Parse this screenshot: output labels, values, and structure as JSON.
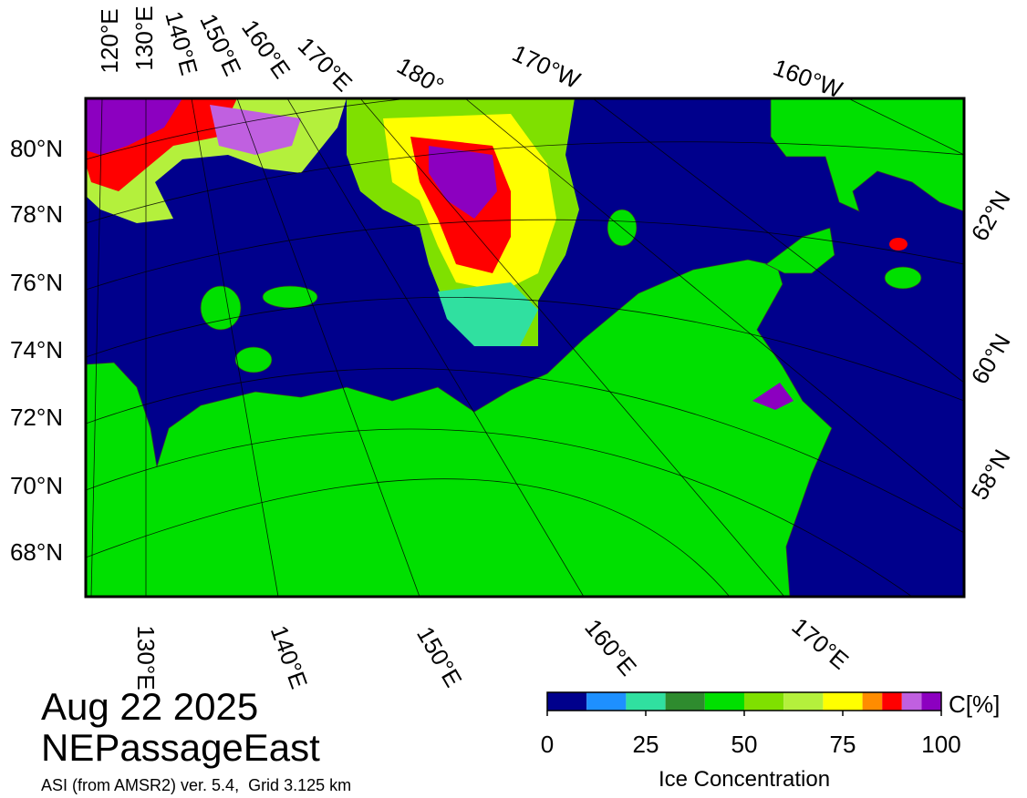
{
  "labels": {
    "top_longitudes": [
      "120°E",
      "130°E",
      "140°E",
      "150°E",
      "160°E",
      "170°E",
      "180°",
      "170°W",
      "160°W"
    ],
    "left_latitudes": [
      "80°N",
      "78°N",
      "76°N",
      "74°N",
      "72°N",
      "70°N",
      "68°N"
    ],
    "right_latitudes": [
      "62°N",
      "60°N",
      "58°N"
    ],
    "bottom_longitudes": [
      "130°E",
      "140°E",
      "150°E",
      "160°E",
      "170°E"
    ]
  },
  "date": "Aug 22 2025",
  "region": "NEPassageEast",
  "caption": "ASI (from AMSR2) ver. 5.4,  Grid 3.125 km",
  "colorbar": {
    "bounds": [
      0,
      10,
      20,
      30,
      40,
      50,
      60,
      70,
      80,
      85,
      90,
      95,
      100
    ],
    "colors": [
      "#00008c",
      "#1e90ff",
      "#30e0a0",
      "#2e8b2e",
      "#00e000",
      "#7fe000",
      "#b4f03c",
      "#ffff00",
      "#ff8c00",
      "#ff0000",
      "#c060e0",
      "#8c00c0"
    ],
    "ticks": [
      0,
      25,
      50,
      75,
      100
    ],
    "label": "Ice Concentration",
    "unit": "C[%]"
  }
}
